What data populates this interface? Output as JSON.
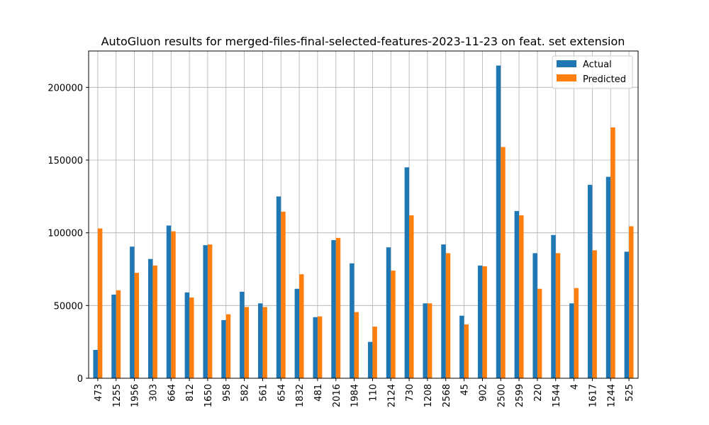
{
  "chart_data": {
    "type": "bar",
    "title": "AutoGluon results for merged-files-final-selected-features-2023-11-23 on feat. set extension",
    "xlabel": "",
    "ylabel": "",
    "categories": [
      "473",
      "1255",
      "1956",
      "303",
      "664",
      "812",
      "1650",
      "958",
      "582",
      "561",
      "654",
      "1832",
      "481",
      "2016",
      "1984",
      "110",
      "2124",
      "730",
      "1208",
      "2568",
      "45",
      "902",
      "2500",
      "2599",
      "220",
      "1544",
      "4",
      "1617",
      "1244",
      "525"
    ],
    "series": [
      {
        "name": "Actual",
        "color": "#1f77b4",
        "values": [
          19500,
          57500,
          90500,
          82000,
          105000,
          59000,
          91500,
          40000,
          59500,
          51500,
          125000,
          61500,
          42000,
          95000,
          79000,
          25000,
          90000,
          145000,
          51500,
          92000,
          43000,
          77500,
          215000,
          115000,
          86000,
          98500,
          51500,
          133000,
          138500,
          87000
        ]
      },
      {
        "name": "Predicted",
        "color": "#ff7f0e",
        "values": [
          103000,
          60500,
          72500,
          77500,
          101000,
          55500,
          92000,
          44000,
          49000,
          49000,
          114500,
          71500,
          42500,
          96500,
          45500,
          35500,
          74000,
          112000,
          51500,
          86000,
          37000,
          77000,
          159000,
          112000,
          61500,
          86000,
          62000,
          88000,
          172500,
          104500
        ]
      }
    ],
    "ylim": [
      0,
      225000
    ],
    "yticks": [
      0,
      50000,
      100000,
      150000,
      200000
    ],
    "grid": true,
    "legend": "top-right"
  }
}
